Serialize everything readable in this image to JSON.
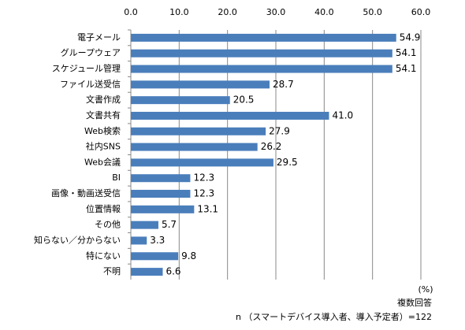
{
  "chart_data": {
    "type": "bar",
    "orientation": "horizontal",
    "categories": [
      "電子メール",
      "グループウェア",
      "スケジュール管理",
      "ファイル送受信",
      "文書作成",
      "文書共有",
      "Web検索",
      "社内SNS",
      "Web会議",
      "BI",
      "画像・動画送受信",
      "位置情報",
      "その他",
      "知らない／分からない",
      "特にない",
      "不明"
    ],
    "values": [
      54.9,
      54.1,
      54.1,
      28.7,
      20.5,
      41.0,
      27.9,
      26.2,
      29.5,
      12.3,
      12.3,
      13.1,
      5.7,
      3.3,
      9.8,
      6.6
    ],
    "value_labels": [
      "54.9",
      "54.1",
      "54.1",
      "28.7",
      "20.5",
      "41.0",
      "27.9",
      "26.2",
      "29.5",
      "12.3",
      "12.3",
      "13.1",
      "5.7",
      "3.3",
      "9.8",
      "6.6"
    ],
    "color": "#4a7ebb",
    "xlim": [
      0,
      60
    ],
    "xticks": [
      {
        "value": 0,
        "label": "0.0"
      },
      {
        "value": 10,
        "label": "10.0"
      },
      {
        "value": 20,
        "label": "20.0"
      },
      {
        "value": 30,
        "label": "30.0"
      },
      {
        "value": 40,
        "label": "40.0"
      },
      {
        "value": 50,
        "label": "50.0"
      },
      {
        "value": 60,
        "label": "60.0"
      }
    ],
    "grid": true,
    "unit": "(%)",
    "annotations": [
      "複数回答",
      "n （スマートデバイス導入者、導入予定者）=122"
    ]
  }
}
